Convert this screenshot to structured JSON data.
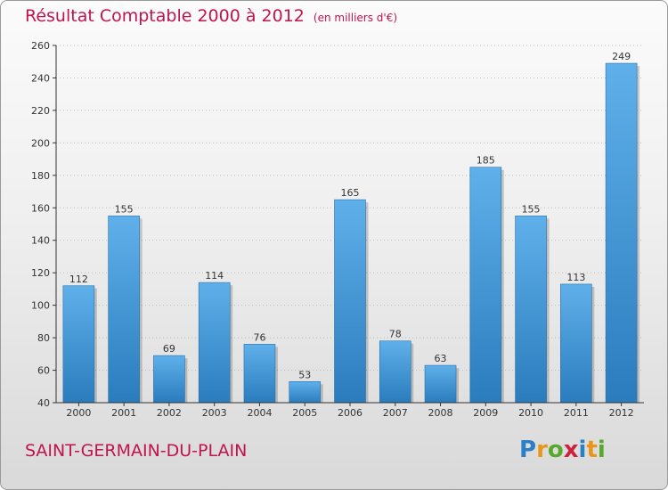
{
  "title": "Résultat Comptable 2000 à 2012",
  "subtitle": "(en milliers d'€)",
  "commune": "SAINT-GERMAIN-DU-PLAIN",
  "logo": {
    "letters": [
      "P",
      "r",
      "o",
      "x",
      "i",
      "t",
      "i"
    ],
    "colors": [
      "#2b7fc4",
      "#e8951a",
      "#5aa82b",
      "#d0213c",
      "#2b7fc4",
      "#e8951a",
      "#5aa82b"
    ]
  },
  "colors": {
    "title": "#c0144e",
    "bar_light": "#5fb0ea",
    "bar_dark": "#2a7cbd",
    "axis": "#333333",
    "grid": "#bbbbbb"
  },
  "chart_data": {
    "type": "bar",
    "title": "Résultat Comptable 2000 à 2012",
    "subtitle": "(en milliers d'€)",
    "xlabel": "",
    "ylabel": "",
    "categories": [
      "2000",
      "2001",
      "2002",
      "2003",
      "2004",
      "2005",
      "2006",
      "2007",
      "2008",
      "2009",
      "2010",
      "2011",
      "2012"
    ],
    "values": [
      112,
      155,
      69,
      114,
      76,
      53,
      165,
      78,
      63,
      185,
      155,
      113,
      249
    ],
    "ylim": [
      40,
      260
    ],
    "yticks": [
      40,
      60,
      80,
      100,
      120,
      140,
      160,
      180,
      200,
      220,
      240,
      260
    ],
    "grid": true
  }
}
